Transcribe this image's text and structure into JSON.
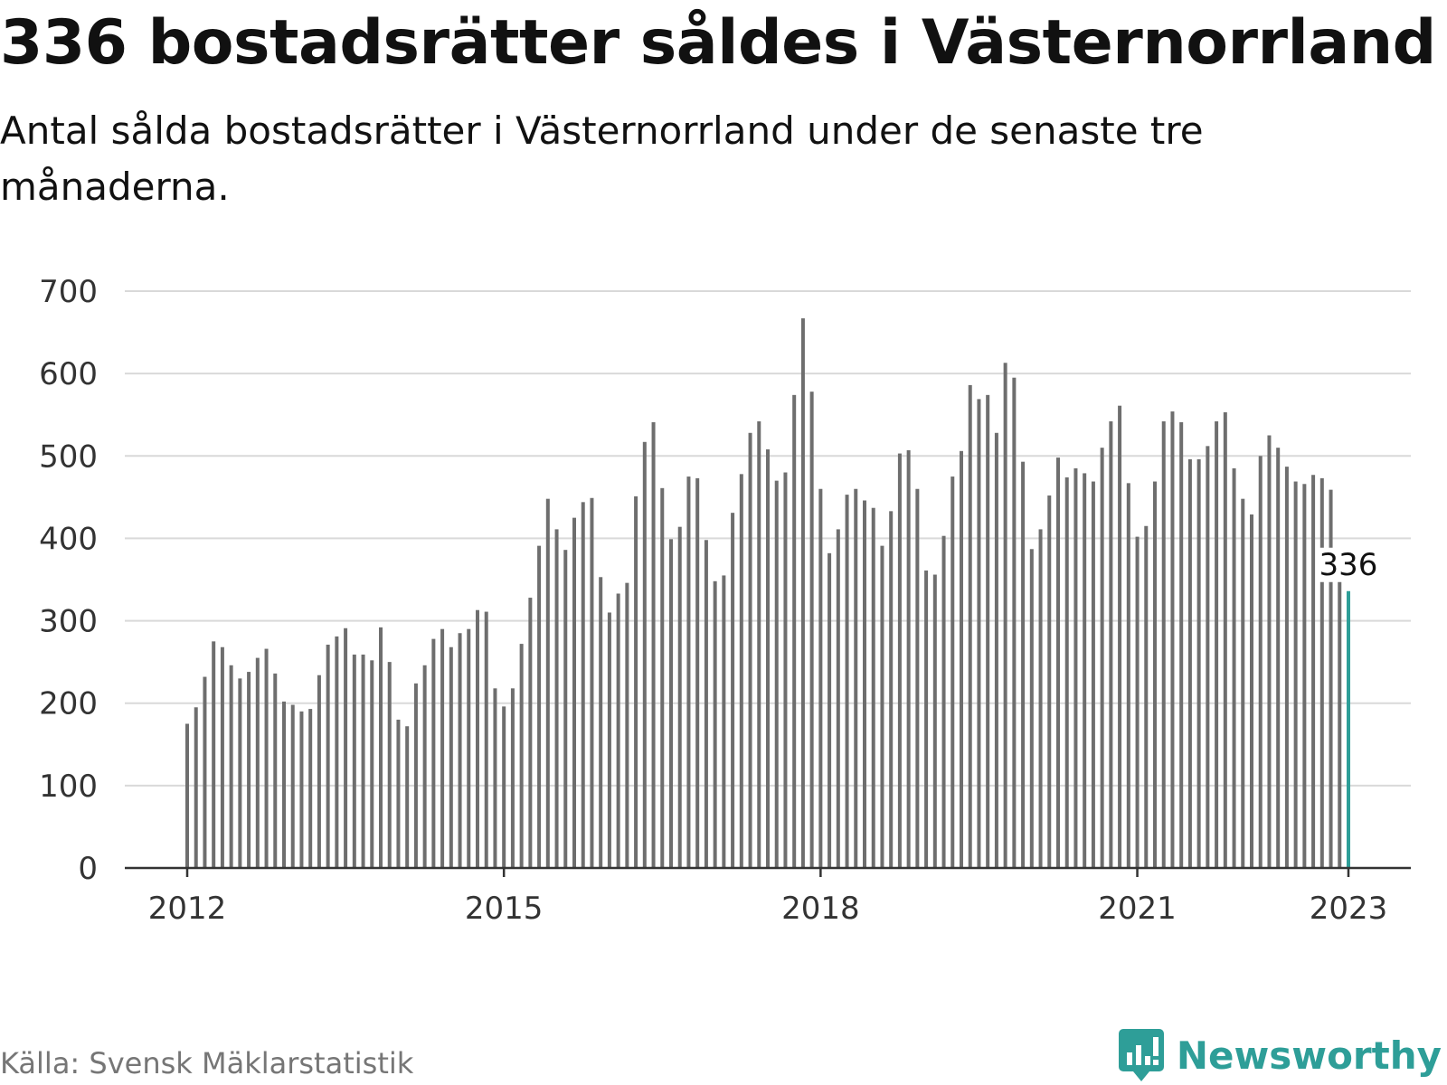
{
  "header": {
    "title": "336 bostadsrätter såldes i Västernorrland",
    "subtitle": "Antal sålda bostadsrätter i Västernorrland under de senaste tre månaderna."
  },
  "footer": {
    "source": "Källa: Svensk Mäklarstatistik",
    "brand": "Newsworthy"
  },
  "colors": {
    "bar": "#6e6e6e",
    "highlight": "#2e9e98",
    "grid": "#d9d9d9",
    "axis": "#333333"
  },
  "icons": {
    "brand_logo": "bar-chart-speech-bubble-icon"
  },
  "chart_data": {
    "type": "bar",
    "title": "336 bostadsrätter såldes i Västernorrland",
    "subtitle": "Antal sålda bostadsrätter i Västernorrland under de senaste tre månaderna.",
    "xlabel": "",
    "ylabel": "",
    "ylim": [
      0,
      700
    ],
    "yticks": [
      0,
      100,
      200,
      300,
      400,
      500,
      600,
      700
    ],
    "xticks": [
      {
        "label": "2012",
        "date": "2012-01"
      },
      {
        "label": "2015",
        "date": "2015-01"
      },
      {
        "label": "2018",
        "date": "2018-01"
      },
      {
        "label": "2021",
        "date": "2021-01"
      },
      {
        "label": "2023",
        "date": "2023-01"
      }
    ],
    "grid": true,
    "legend": "none",
    "x_start": "2012-01",
    "x_end": "2023-01",
    "highlight": {
      "date": "2023-01",
      "value": 336,
      "label": "336"
    },
    "values": [
      175,
      195,
      232,
      275,
      268,
      246,
      230,
      238,
      255,
      266,
      236,
      202,
      198,
      190,
      193,
      234,
      271,
      281,
      291,
      259,
      259,
      252,
      292,
      250,
      180,
      172,
      224,
      246,
      278,
      290,
      268,
      285,
      290,
      313,
      311,
      218,
      196,
      218,
      272,
      328,
      391,
      448,
      411,
      386,
      425,
      444,
      449,
      353,
      310,
      333,
      346,
      451,
      517,
      541,
      461,
      399,
      414,
      475,
      473,
      398,
      348,
      355,
      431,
      478,
      528,
      542,
      508,
      470,
      480,
      574,
      667,
      578,
      460,
      382,
      411,
      453,
      460,
      446,
      437,
      391,
      433,
      503,
      507,
      460,
      361,
      356,
      403,
      475,
      506,
      586,
      569,
      574,
      528,
      613,
      595,
      493,
      387,
      411,
      452,
      498,
      474,
      485,
      479,
      469,
      510,
      542,
      561,
      467,
      402,
      415,
      469,
      542,
      554,
      541,
      496,
      496,
      512,
      542,
      553,
      485,
      448,
      429,
      500,
      525,
      510,
      487,
      469,
      466,
      477,
      473,
      459,
      356,
      336
    ]
  }
}
